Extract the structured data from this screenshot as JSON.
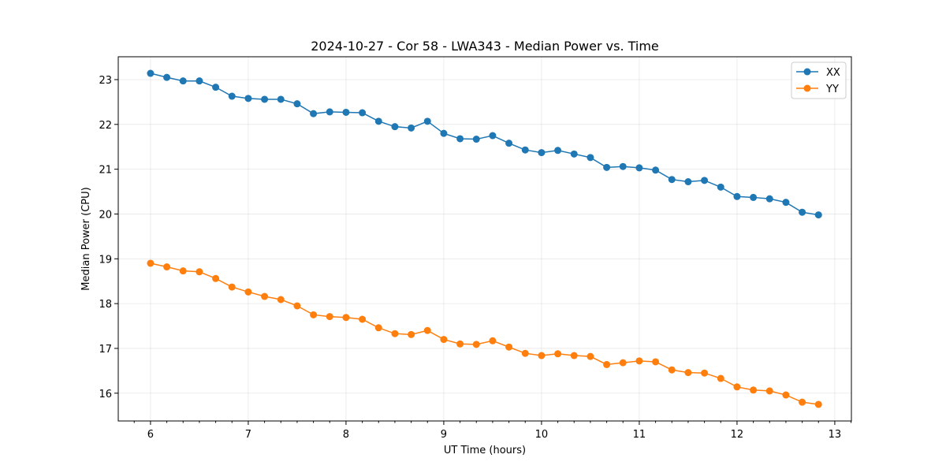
{
  "chart_data": {
    "type": "line",
    "title": "2024-10-27 - Cor 58 - LWA343 - Median Power vs. Time",
    "xlabel": "UT Time (hours)",
    "ylabel": "Median Power (CPU)",
    "xlim": [
      5.67,
      13.17
    ],
    "ylim": [
      15.38,
      23.51
    ],
    "xticks": [
      6,
      7,
      8,
      9,
      10,
      11,
      12,
      13
    ],
    "yticks": [
      16,
      17,
      18,
      19,
      20,
      21,
      22,
      23
    ],
    "grid": true,
    "legend_position": "top-right",
    "x": [
      6.0,
      6.1667,
      6.3333,
      6.5,
      6.6667,
      6.8333,
      7.0,
      7.1667,
      7.3333,
      7.5,
      7.6667,
      7.8333,
      8.0,
      8.1667,
      8.3333,
      8.5,
      8.6667,
      8.8333,
      9.0,
      9.1667,
      9.3333,
      9.5,
      9.6667,
      9.8333,
      10.0,
      10.1667,
      10.3333,
      10.5,
      10.6667,
      10.8333,
      11.0,
      11.1667,
      11.3333,
      11.5,
      11.6667,
      11.8333,
      12.0,
      12.1667,
      12.3333,
      12.5,
      12.6667,
      12.8333
    ],
    "series": [
      {
        "name": "XX",
        "color": "#1f77b4",
        "values": [
          23.14,
          23.05,
          22.97,
          22.97,
          22.83,
          22.63,
          22.58,
          22.56,
          22.56,
          22.46,
          22.24,
          22.28,
          22.27,
          22.26,
          22.07,
          21.95,
          21.92,
          22.07,
          21.8,
          21.68,
          21.67,
          21.75,
          21.58,
          21.43,
          21.37,
          21.42,
          21.34,
          21.26,
          21.04,
          21.06,
          21.03,
          20.98,
          20.77,
          20.72,
          20.75,
          20.6,
          20.39,
          20.37,
          20.34,
          20.26,
          20.04,
          19.98
        ]
      },
      {
        "name": "YY",
        "color": "#ff7f0e",
        "values": [
          18.9,
          18.82,
          18.73,
          18.71,
          18.56,
          18.37,
          18.26,
          18.16,
          18.09,
          17.95,
          17.75,
          17.71,
          17.69,
          17.65,
          17.46,
          17.33,
          17.31,
          17.4,
          17.2,
          17.1,
          17.09,
          17.17,
          17.03,
          16.89,
          16.84,
          16.88,
          16.84,
          16.82,
          16.64,
          16.68,
          16.72,
          16.7,
          16.52,
          16.46,
          16.45,
          16.33,
          16.14,
          16.07,
          16.05,
          15.96,
          15.8,
          15.75
        ]
      }
    ]
  }
}
